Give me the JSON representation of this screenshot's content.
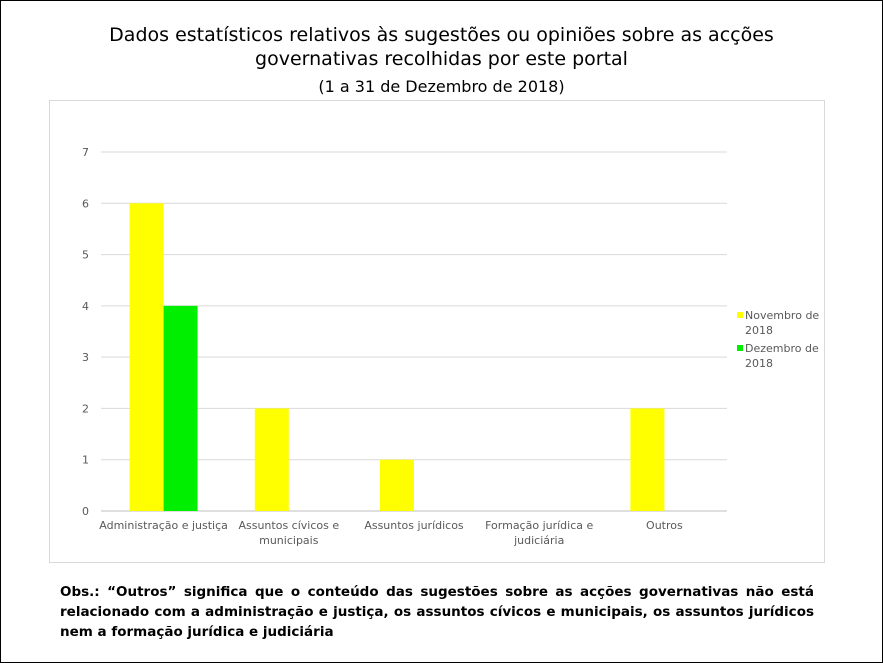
{
  "chart_data": {
    "type": "bar",
    "title": "Dados estatísticos relativos às sugestões ou opiniões sobre as acções governativas recolhidas por este portal",
    "title_lines": [
      "Dados estatísticos relativos às sugestões ou opiniões sobre as acções",
      "governativas recolhidas por este portal"
    ],
    "subtitle": "(1 a 31 de Dezembro de 2018)",
    "categories": [
      [
        "Administração e justiça"
      ],
      [
        "Assuntos cívicos e",
        "municipais"
      ],
      [
        "Assuntos jurídicos"
      ],
      [
        "Formação jurídica e",
        "judiciária"
      ],
      [
        "Outros"
      ]
    ],
    "series": [
      {
        "name": [
          "Novembro de",
          "2018"
        ],
        "color": "#ffff00",
        "values": [
          6,
          2,
          1,
          0,
          2
        ]
      },
      {
        "name": [
          "Dezembro de",
          "2018"
        ],
        "color": "#00ee00",
        "values": [
          4,
          0,
          0,
          0,
          0
        ]
      }
    ],
    "ylim": [
      0,
      7
    ],
    "yticks": [
      0,
      1,
      2,
      3,
      4,
      5,
      6,
      7
    ],
    "grid": true,
    "legend_position": "right"
  },
  "note": "Obs.: “Outros” significa que o conteúdo das sugestões sobre as acções governativas não está relacionado com a administração e justiça, os assuntos cívicos e municipais, os assuntos jurídicos nem a formação jurídica e judiciária"
}
